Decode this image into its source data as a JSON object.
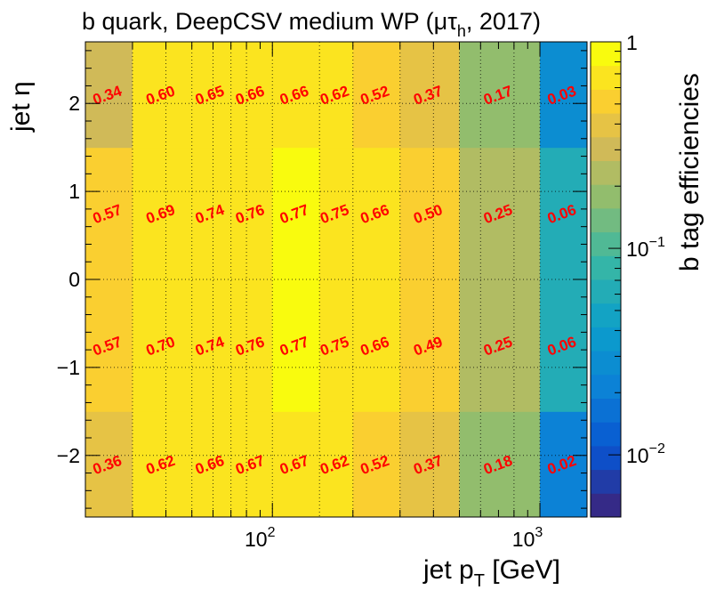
{
  "chart_data": {
    "type": "heatmap",
    "title_main": "b quark, DeepCSV medium WP (",
    "title_symbol": "μτ",
    "title_sub": "h",
    "title_end": ", 2017)",
    "xlabel_main": "jet p",
    "xlabel_sub": "T",
    "xlabel_end": " [GeV]",
    "ylabel": "jet η",
    "zlabel": "b tag efficiencies",
    "x_scale": "log",
    "z_scale": "log",
    "x_bin_edges": [
      20,
      30,
      40,
      50,
      60,
      70,
      80,
      100,
      150,
      200,
      300,
      400,
      500,
      600,
      800,
      1000,
      1500
    ],
    "x_labeled_bins": [
      [
        20,
        30
      ],
      [
        30,
        50
      ],
      [
        50,
        70
      ],
      [
        70,
        100
      ],
      [
        100,
        150
      ],
      [
        150,
        200
      ],
      [
        200,
        300
      ],
      [
        300,
        500
      ],
      [
        500,
        1000
      ],
      [
        1000,
        1500
      ]
    ],
    "y_bin_edges": [
      -2.7,
      -1.5,
      0,
      1.5,
      2.7
    ],
    "values": [
      [
        0.36,
        0.62,
        0.66,
        0.67,
        0.67,
        0.62,
        0.52,
        0.37,
        0.18,
        0.02
      ],
      [
        0.57,
        0.7,
        0.74,
        0.76,
        0.77,
        0.75,
        0.66,
        0.49,
        0.25,
        0.06
      ],
      [
        0.57,
        0.69,
        0.74,
        0.76,
        0.77,
        0.75,
        0.66,
        0.5,
        0.25,
        0.06
      ],
      [
        0.34,
        0.6,
        0.65,
        0.66,
        0.66,
        0.62,
        0.52,
        0.37,
        0.17,
        0.03
      ]
    ],
    "value_labels": [
      [
        "0.36",
        "0.62",
        "0.66",
        "0.67",
        "0.67",
        "0.62",
        "0.52",
        "0.37",
        "0.18",
        "0.02"
      ],
      [
        "0.57",
        "0.70",
        "0.74",
        "0.76",
        "0.77",
        "0.75",
        "0.66",
        "0.49",
        "0.25",
        "0.06"
      ],
      [
        "0.57",
        "0.69",
        "0.74",
        "0.76",
        "0.77",
        "0.75",
        "0.66",
        "0.50",
        "0.25",
        "0.06"
      ],
      [
        "0.34",
        "0.60",
        "0.65",
        "0.66",
        "0.66",
        "0.62",
        "0.52",
        "0.37",
        "0.17",
        "0.03"
      ]
    ],
    "xlim": [
      20,
      1500
    ],
    "ylim": [
      -2.7,
      2.7
    ],
    "zlim": [
      0.005,
      1
    ],
    "x_major_ticks": [
      100,
      1000
    ],
    "x_tick_labels": [
      {
        "base": "10",
        "exp": "2"
      },
      {
        "base": "10",
        "exp": "3"
      }
    ],
    "y_ticks": [
      -2,
      -1,
      0,
      1,
      2
    ],
    "y_tick_labels": [
      "−2",
      "−1",
      "0",
      "1",
      "2"
    ],
    "z_ticks": [
      1,
      0.1,
      0.01
    ],
    "z_tick_labels": [
      {
        "base": "1",
        "exp": ""
      },
      {
        "base": "10",
        "exp": "−1"
      },
      {
        "base": "10",
        "exp": "−2"
      }
    ],
    "grid": true,
    "colormap": "parula",
    "label_color": "#ff0000"
  }
}
